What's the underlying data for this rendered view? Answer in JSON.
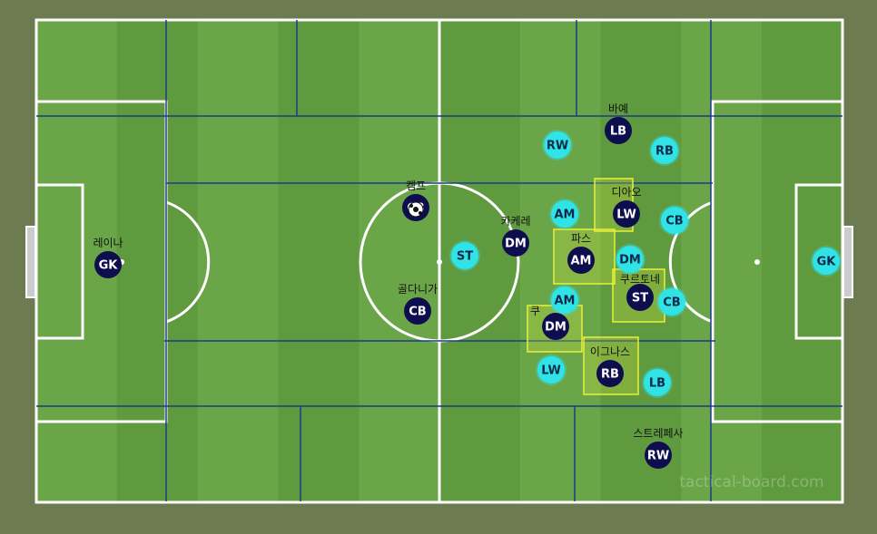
{
  "board": {
    "watermark": "tactical-board.com",
    "colors": {
      "background": "#6d7c50",
      "grass_light": "#6aa548",
      "grass_dark": "#5f9a3f",
      "lines": "#ffffff",
      "zone_lines": "#1a3c8c",
      "highlight": "#e8f03a",
      "team_dark": "#0e0e4e",
      "team_light": "#2fe3e6"
    }
  },
  "players": [
    {
      "team": "dark",
      "role": "GK",
      "name": "레이나"
    },
    {
      "team": "dark",
      "role": "CB",
      "name": "켐프",
      "has_ball": true
    },
    {
      "team": "dark",
      "role": "CB",
      "name": "골다니가"
    },
    {
      "team": "dark",
      "role": "DM",
      "name": "카케레"
    },
    {
      "team": "dark",
      "role": "AM",
      "name": "파스"
    },
    {
      "team": "dark",
      "role": "LW",
      "name": "디아오"
    },
    {
      "team": "dark",
      "role": "ST",
      "name": "쿠르토네"
    },
    {
      "team": "dark",
      "role": "DM",
      "name": "쿠"
    },
    {
      "team": "dark",
      "role": "RB",
      "name": "이그나스"
    },
    {
      "team": "dark",
      "role": "LB",
      "name": "바예"
    },
    {
      "team": "dark",
      "role": "RW",
      "name": "스트레페사"
    },
    {
      "team": "light",
      "role": "RW",
      "name": ""
    },
    {
      "team": "light",
      "role": "RB",
      "name": ""
    },
    {
      "team": "light",
      "role": "AM",
      "name": ""
    },
    {
      "team": "light",
      "role": "CB",
      "name": ""
    },
    {
      "team": "light",
      "role": "DM",
      "name": ""
    },
    {
      "team": "light",
      "role": "ST",
      "name": ""
    },
    {
      "team": "light",
      "role": "AM",
      "name": ""
    },
    {
      "team": "light",
      "role": "CB",
      "name": ""
    },
    {
      "team": "light",
      "role": "LW",
      "name": ""
    },
    {
      "team": "light",
      "role": "LB",
      "name": ""
    },
    {
      "team": "light",
      "role": "GK",
      "name": ""
    }
  ]
}
